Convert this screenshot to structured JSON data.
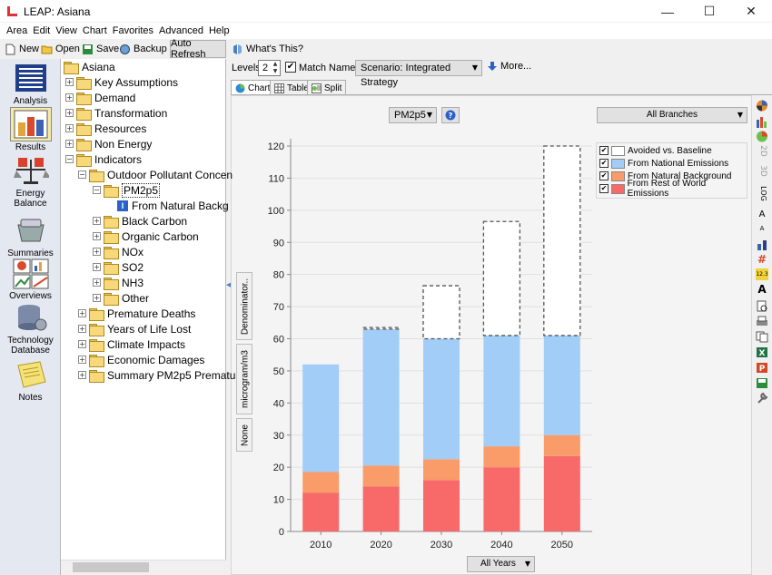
{
  "window": {
    "title": "LEAP: Asiana",
    "minimize": "—",
    "maximize": "☐",
    "close": "✕"
  },
  "menu": [
    "Area",
    "Edit",
    "View",
    "Chart",
    "Favorites",
    "Advanced",
    "Help"
  ],
  "toolbar": {
    "new": "New",
    "open": "Open",
    "save": "Save",
    "backup": "Backup",
    "auto_refresh": "Auto Refresh",
    "whats_this": "What's This?"
  },
  "nav": [
    {
      "label": "Analysis",
      "icon": "analysis-icon"
    },
    {
      "label": "Results",
      "icon": "results-icon",
      "selected": true
    },
    {
      "label": "Energy Balance",
      "icon": "energy-balance-icon"
    },
    {
      "label": "Summaries",
      "icon": "summaries-icon"
    },
    {
      "label": "Overviews",
      "icon": "overviews-icon"
    },
    {
      "label": "Technology Database",
      "icon": "technology-database-icon"
    },
    {
      "label": "Notes",
      "icon": "notes-icon"
    }
  ],
  "tree": [
    {
      "label": "Asiana",
      "level": 0,
      "expander": "",
      "type": "folder"
    },
    {
      "label": "Key Assumptions",
      "level": 1,
      "expander": "+",
      "type": "folder"
    },
    {
      "label": "Demand",
      "level": 1,
      "expander": "+",
      "type": "folder"
    },
    {
      "label": "Transformation",
      "level": 1,
      "expander": "+",
      "type": "folder"
    },
    {
      "label": "Resources",
      "level": 1,
      "expander": "+",
      "type": "folder"
    },
    {
      "label": "Non Energy",
      "level": 1,
      "expander": "+",
      "type": "folder"
    },
    {
      "label": "Indicators",
      "level": 1,
      "expander": "−",
      "type": "folder"
    },
    {
      "label": "Outdoor Pollutant Concen",
      "level": 2,
      "expander": "−",
      "type": "folder"
    },
    {
      "label": "PM2p5",
      "level": 3,
      "expander": "−",
      "type": "folder",
      "selected": true
    },
    {
      "label": "From Natural Backg",
      "level": 4,
      "expander": "",
      "type": "info"
    },
    {
      "label": "Black Carbon",
      "level": 3,
      "expander": "+",
      "type": "folder"
    },
    {
      "label": "Organic Carbon",
      "level": 3,
      "expander": "+",
      "type": "folder"
    },
    {
      "label": "NOx",
      "level": 3,
      "expander": "+",
      "type": "folder"
    },
    {
      "label": "SO2",
      "level": 3,
      "expander": "+",
      "type": "folder"
    },
    {
      "label": "NH3",
      "level": 3,
      "expander": "+",
      "type": "folder"
    },
    {
      "label": "Other",
      "level": 3,
      "expander": "+",
      "type": "folder"
    },
    {
      "label": "Premature Deaths",
      "level": 2,
      "expander": "+",
      "type": "folder"
    },
    {
      "label": "Years of Life Lost",
      "level": 2,
      "expander": "+",
      "type": "folder"
    },
    {
      "label": "Climate Impacts",
      "level": 2,
      "expander": "+",
      "type": "folder"
    },
    {
      "label": "Economic Damages",
      "level": 2,
      "expander": "+",
      "type": "folder"
    },
    {
      "label": "Summary PM2p5 Prematu",
      "level": 2,
      "expander": "+",
      "type": "folder"
    }
  ],
  "controls": {
    "levels_label": "Levels:",
    "levels_value": "2",
    "match_names": "Match Names",
    "match_checked": "✔",
    "scenario": "Scenario: Integrated Strategy",
    "more": "More...",
    "indicator": "PM2p5",
    "branches": "All Branches",
    "years": "All Years"
  },
  "tabs": [
    {
      "label": "Chart",
      "active": true
    },
    {
      "label": "Table"
    },
    {
      "label": "Split"
    }
  ],
  "side_buttons": {
    "denominator": "Denominator..",
    "unit": "microgram/m3",
    "none": "None"
  },
  "right_tools": [
    "chart-type-icon",
    "bar-icon",
    "pie-icon",
    "2d-icon",
    "3d-icon",
    "log-icon",
    "font-larger-icon",
    "font-smaller-icon",
    "stack-icon",
    "grid-icon",
    "number-format-icon",
    "font-icon",
    "print-preview-icon",
    "print-icon",
    "copy-icon",
    "excel-icon",
    "powerpoint-icon",
    "save-icon",
    "settings-icon"
  ],
  "right_tool_text": {
    "log": "LOG",
    "v2d": "2D",
    "v3d": "3D",
    "a_big": "A",
    "a_small": "A",
    "num": "12.3",
    "font": "A"
  },
  "chart_data": {
    "type": "bar",
    "stacked": true,
    "categories": [
      "2010",
      "2020",
      "2030",
      "2040",
      "2050"
    ],
    "ylim": [
      0,
      120
    ],
    "yticks": [
      0,
      10,
      20,
      30,
      40,
      50,
      60,
      70,
      80,
      90,
      100,
      110,
      120
    ],
    "ylabel": "microgram/m3",
    "series": [
      {
        "name": "From Rest of World Emissions",
        "color": "#f86a6a",
        "values": [
          12,
          14,
          16,
          20,
          23.5
        ]
      },
      {
        "name": "From Natural Background",
        "color": "#f99c6a",
        "values": [
          6.5,
          6.5,
          6.5,
          6.5,
          6.5
        ]
      },
      {
        "name": "From National Emissions",
        "color": "#a1cdf6",
        "values": [
          33.5,
          42.5,
          37.5,
          34.5,
          31
        ]
      },
      {
        "name": "Avoided vs. Baseline",
        "color": "#ffffff",
        "dashed": true,
        "values": [
          0,
          0.5,
          16.5,
          35.5,
          59
        ]
      }
    ],
    "legend_order": [
      "Avoided vs. Baseline",
      "From National Emissions",
      "From Natural Background",
      "From Rest of World Emissions"
    ],
    "grid": true,
    "legend_position": "top-right"
  }
}
